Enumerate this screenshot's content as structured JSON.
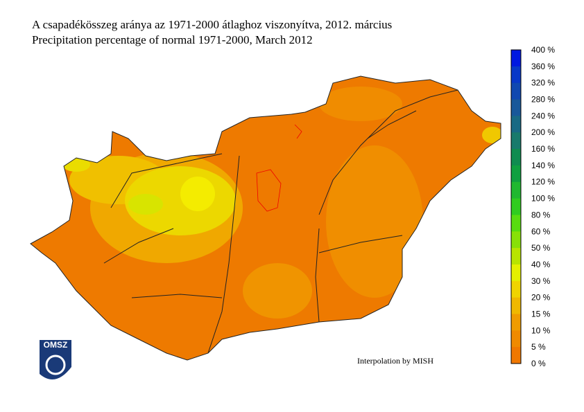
{
  "header": {
    "title_hu": "A csapadékösszeg aránya az 1971-2000 átlaghoz viszonyítva, 2012. március",
    "title_en": "Precipitation percentage of normal 1971-2000, March 2012"
  },
  "legend": {
    "labels": [
      "400 %",
      "360 %",
      "320 %",
      "280 %",
      "240 %",
      "200 %",
      "160 %",
      "140 %",
      "120 %",
      "100 %",
      "80 %",
      "60 %",
      "50 %",
      "40 %",
      "30 %",
      "20 %",
      "15 %",
      "10 %",
      "5 %",
      "0 %"
    ],
    "colors": [
      "#0018e0",
      "#0838c8",
      "#1048b0",
      "#18589a",
      "#186a84",
      "#187a6c",
      "#108c50",
      "#10a040",
      "#20b830",
      "#30cc20",
      "#58dc10",
      "#88e008",
      "#b8e400",
      "#e4f000",
      "#f0d400",
      "#f0b800",
      "#f09c00",
      "#f08a00",
      "#f07800"
    ]
  },
  "logo": "OMSZ",
  "credit": "Interpolation by MISH"
}
